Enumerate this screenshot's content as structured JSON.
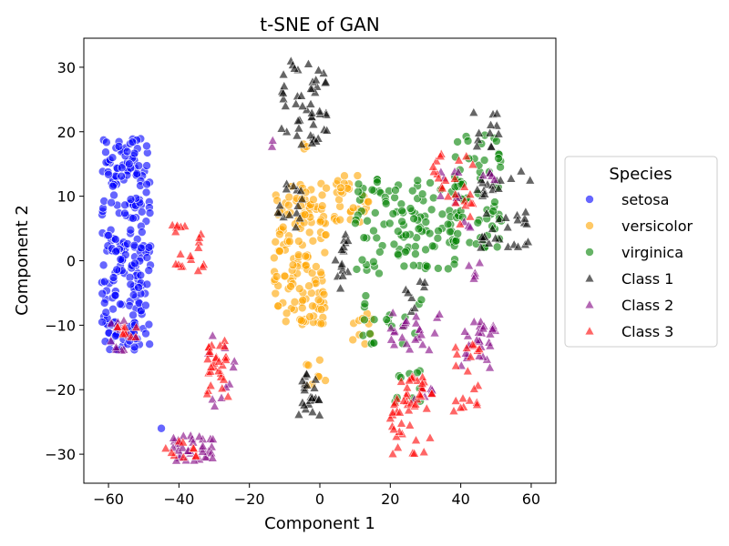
{
  "chart_data": {
    "type": "scatter",
    "title": "t-SNE of GAN",
    "xlabel": "Component 1",
    "ylabel": "Component 2",
    "xlim": [
      -67,
      67
    ],
    "ylim": [
      -34.5,
      34.5
    ],
    "xticks": [
      -60,
      -40,
      -20,
      0,
      20,
      40,
      60
    ],
    "yticks": [
      -30,
      -20,
      -10,
      0,
      10,
      20,
      30
    ],
    "grid": false,
    "legend": {
      "title": "Species",
      "placement": "outside-right",
      "entries": [
        "setosa",
        "versicolor",
        "virginica",
        "Class 1",
        "Class 2",
        "Class 3"
      ]
    },
    "series": [
      {
        "name": "setosa",
        "marker": "circle",
        "color": "#0000ff",
        "clusters": [
          {
            "x": [
              -62,
              -48
            ],
            "y": [
              -14,
              19
            ],
            "n": 230
          },
          {
            "x": [
              -60,
              -50
            ],
            "y": [
              -14,
              -8
            ],
            "n": 8
          },
          {
            "x": [
              -45,
              -45
            ],
            "y": [
              -26,
              -26
            ],
            "n": 1
          }
        ]
      },
      {
        "name": "versicolor",
        "marker": "circle",
        "color": "#ffa500",
        "clusters": [
          {
            "x": [
              -13,
              2
            ],
            "y": [
              -10,
              12
            ],
            "n": 150
          },
          {
            "x": [
              4,
              14
            ],
            "y": [
              6,
              14
            ],
            "n": 30
          },
          {
            "x": [
              8,
              15
            ],
            "y": [
              -13,
              -8
            ],
            "n": 10
          },
          {
            "x": [
              -4,
              2
            ],
            "y": [
              -20,
              -15
            ],
            "n": 8
          },
          {
            "x": [
              -5,
              -2
            ],
            "y": [
              17,
              19
            ],
            "n": 3
          }
        ]
      },
      {
        "name": "virginica",
        "marker": "circle",
        "color": "#008000",
        "clusters": [
          {
            "x": [
              10,
              40
            ],
            "y": [
              -2,
              13
            ],
            "n": 120
          },
          {
            "x": [
              38,
              52
            ],
            "y": [
              2,
              20
            ],
            "n": 60
          },
          {
            "x": [
              12,
              30
            ],
            "y": [
              -13,
              -5
            ],
            "n": 20
          },
          {
            "x": [
              20,
              30
            ],
            "y": [
              -22,
              -17
            ],
            "n": 10
          }
        ]
      },
      {
        "name": "Class 1",
        "marker": "triangle",
        "color": "#000000",
        "clusters": [
          {
            "x": [
              -12,
              2
            ],
            "y": [
              18,
              31
            ],
            "n": 50
          },
          {
            "x": [
              -12,
              -5
            ],
            "y": [
              5,
              13
            ],
            "n": 15
          },
          {
            "x": [
              4,
              8
            ],
            "y": [
              -5,
              5
            ],
            "n": 15
          },
          {
            "x": [
              -6,
              0
            ],
            "y": [
              -24,
              -17
            ],
            "n": 25
          },
          {
            "x": [
              44,
              60
            ],
            "y": [
              2,
              14
            ],
            "n": 40
          },
          {
            "x": [
              42,
              52
            ],
            "y": [
              17,
              23
            ],
            "n": 12
          },
          {
            "x": [
              24,
              30
            ],
            "y": [
              -8,
              -3
            ],
            "n": 8
          }
        ]
      },
      {
        "name": "Class 2",
        "marker": "triangle",
        "color": "#800080",
        "clusters": [
          {
            "x": [
              -42,
              -30
            ],
            "y": [
              -31,
              -27
            ],
            "n": 35
          },
          {
            "x": [
              -33,
              -24
            ],
            "y": [
              -23,
              -11
            ],
            "n": 10
          },
          {
            "x": [
              -60,
              -54
            ],
            "y": [
              -14,
              -9
            ],
            "n": 10
          },
          {
            "x": [
              20,
              35
            ],
            "y": [
              -14,
              -8
            ],
            "n": 25
          },
          {
            "x": [
              40,
              50
            ],
            "y": [
              -17,
              -9
            ],
            "n": 30
          },
          {
            "x": [
              34,
              50
            ],
            "y": [
              5,
              15
            ],
            "n": 15
          },
          {
            "x": [
              26,
              34
            ],
            "y": [
              -22,
              -18
            ],
            "n": 6
          },
          {
            "x": [
              42,
              46
            ],
            "y": [
              -4,
              1
            ],
            "n": 5
          },
          {
            "x": [
              -14,
              -10
            ],
            "y": [
              17,
              19
            ],
            "n": 2
          }
        ]
      },
      {
        "name": "Class 3",
        "marker": "triangle",
        "color": "#ff0000",
        "clusters": [
          {
            "x": [
              -44,
              -35
            ],
            "y": [
              -31,
              -28
            ],
            "n": 10
          },
          {
            "x": [
              -32,
              -26
            ],
            "y": [
              -22,
              -12
            ],
            "n": 30
          },
          {
            "x": [
              -42,
              -32
            ],
            "y": [
              -2,
              10
            ],
            "n": 20
          },
          {
            "x": [
              -58,
              -52
            ],
            "y": [
              -12,
              -10
            ],
            "n": 10
          },
          {
            "x": [
              20,
              32
            ],
            "y": [
              -30,
              -18
            ],
            "n": 50
          },
          {
            "x": [
              38,
              46
            ],
            "y": [
              -24,
              -13
            ],
            "n": 20
          },
          {
            "x": [
              32,
              44
            ],
            "y": [
              5,
              17
            ],
            "n": 25
          }
        ]
      }
    ]
  }
}
